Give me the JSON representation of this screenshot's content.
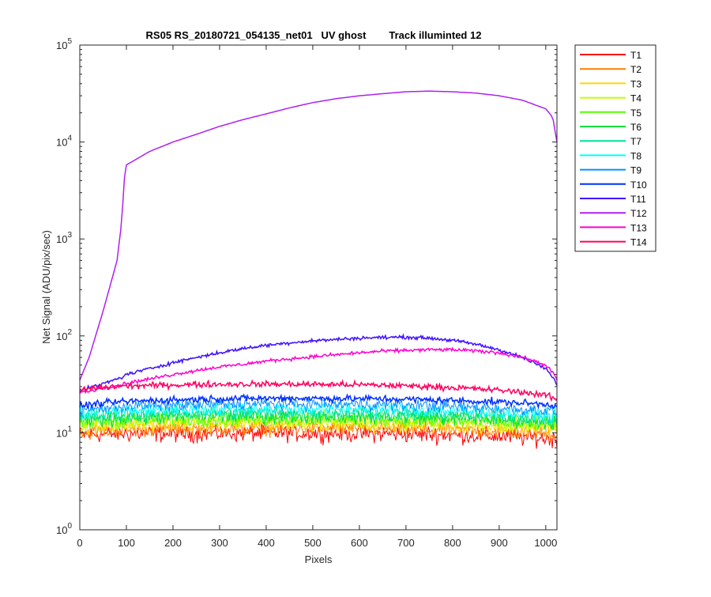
{
  "chart_data": {
    "type": "line",
    "title": "RS05 RS_20180721_054135_net01   UV ghost        Track illuminted 12",
    "xlabel": "Pixels",
    "ylabel": "Net Signal (ADU/pix/sec)",
    "xlim": [
      0,
      1024
    ],
    "ylim": [
      1,
      100000
    ],
    "yscale": "log",
    "grid": false,
    "legend_position": "outside-top-right",
    "x_ticks": [
      "0",
      "100",
      "200",
      "300",
      "400",
      "500",
      "600",
      "700",
      "800",
      "900",
      "1000"
    ],
    "y_ticks": [
      {
        "base": "10",
        "exp": "0"
      },
      {
        "base": "10",
        "exp": "1"
      },
      {
        "base": "10",
        "exp": "2"
      },
      {
        "base": "10",
        "exp": "3"
      },
      {
        "base": "10",
        "exp": "4"
      },
      {
        "base": "10",
        "exp": "5"
      }
    ],
    "x": [
      0,
      20,
      50,
      80,
      90,
      95,
      100,
      150,
      200,
      250,
      300,
      350,
      400,
      450,
      500,
      550,
      600,
      650,
      700,
      750,
      800,
      850,
      900,
      950,
      1000,
      1015,
      1024
    ],
    "series": [
      {
        "name": "T1",
        "color": "#ff0000",
        "noise": 0.1,
        "values": [
          9.5,
          9.6,
          9.7,
          9.8,
          9.8,
          9.8,
          9.8,
          9.8,
          9.8,
          9.8,
          9.9,
          9.9,
          9.9,
          9.9,
          9.9,
          9.9,
          9.8,
          9.8,
          9.7,
          9.6,
          9.5,
          9.4,
          9.2,
          9.0,
          8.8,
          8.6,
          8.5
        ]
      },
      {
        "name": "T2",
        "color": "#ff7f00",
        "noise": 0.09,
        "values": [
          10.0,
          10.2,
          10.5,
          10.7,
          10.7,
          10.8,
          10.8,
          10.9,
          11.0,
          11.0,
          11.1,
          11.1,
          11.1,
          11.1,
          11.0,
          11.0,
          11.0,
          10.9,
          10.8,
          10.7,
          10.6,
          10.5,
          10.3,
          10.1,
          9.9,
          9.7,
          9.5
        ]
      },
      {
        "name": "T3",
        "color": "#ffd700",
        "noise": 0.09,
        "values": [
          11.0,
          11.3,
          11.6,
          11.8,
          11.9,
          11.9,
          12.0,
          12.1,
          12.2,
          12.3,
          12.3,
          12.3,
          12.3,
          12.3,
          12.3,
          12.2,
          12.2,
          12.1,
          12.0,
          12.5,
          12.0,
          11.7,
          11.5,
          11.2,
          11.0,
          10.7,
          10.5
        ]
      },
      {
        "name": "T4",
        "color": "#c0ff00",
        "noise": 0.09,
        "values": [
          11.8,
          12.1,
          12.5,
          12.7,
          12.8,
          12.8,
          12.9,
          13.0,
          13.1,
          13.2,
          13.2,
          13.3,
          13.3,
          13.3,
          13.3,
          13.2,
          13.2,
          13.1,
          13.0,
          12.9,
          12.7,
          12.5,
          12.3,
          12.0,
          11.7,
          11.5,
          11.3
        ]
      },
      {
        "name": "T5",
        "color": "#55ff00",
        "noise": 0.09,
        "values": [
          12.5,
          12.8,
          13.2,
          13.5,
          13.6,
          13.6,
          13.7,
          13.8,
          13.9,
          14.0,
          14.0,
          14.1,
          14.1,
          14.1,
          14.0,
          14.0,
          14.0,
          13.9,
          13.8,
          13.6,
          13.4,
          13.2,
          13.0,
          12.7,
          12.4,
          12.2,
          12.0
        ]
      },
      {
        "name": "T6",
        "color": "#00e040",
        "noise": 0.09,
        "values": [
          13.3,
          13.6,
          14.0,
          14.3,
          14.4,
          14.4,
          14.5,
          14.6,
          14.8,
          14.9,
          15.0,
          15.0,
          15.0,
          15.0,
          15.0,
          14.9,
          14.9,
          14.8,
          14.7,
          14.5,
          14.3,
          14.1,
          13.8,
          13.5,
          13.2,
          13.0,
          12.8
        ]
      },
      {
        "name": "T7",
        "color": "#00e0a0",
        "noise": 0.08,
        "values": [
          14.2,
          14.5,
          15.0,
          15.3,
          15.4,
          15.4,
          15.5,
          15.7,
          15.9,
          16.0,
          16.1,
          16.1,
          16.1,
          16.1,
          16.1,
          16.0,
          16.0,
          15.9,
          15.8,
          15.6,
          15.4,
          15.1,
          14.8,
          14.5,
          14.1,
          13.9,
          13.7
        ]
      },
      {
        "name": "T8",
        "color": "#00ffff",
        "noise": 0.08,
        "values": [
          15.5,
          15.9,
          16.4,
          16.8,
          16.9,
          16.9,
          17.0,
          17.2,
          17.4,
          17.6,
          17.7,
          17.8,
          17.8,
          17.8,
          17.7,
          17.7,
          17.6,
          17.5,
          17.3,
          17.1,
          16.8,
          16.5,
          16.2,
          15.8,
          15.4,
          15.1,
          14.9
        ]
      },
      {
        "name": "T9",
        "color": "#0090ff",
        "noise": 0.07,
        "values": [
          17.0,
          17.4,
          18.0,
          18.4,
          18.6,
          18.6,
          18.7,
          19.0,
          19.3,
          19.5,
          19.7,
          19.8,
          19.8,
          19.8,
          19.8,
          19.7,
          19.6,
          19.5,
          19.3,
          19.0,
          18.7,
          18.3,
          17.9,
          17.4,
          16.9,
          16.6,
          16.3
        ]
      },
      {
        "name": "T10",
        "color": "#0030ff",
        "noise": 0.04,
        "values": [
          19.0,
          19.5,
          20.2,
          20.7,
          20.9,
          21.0,
          21.1,
          21.5,
          21.9,
          22.2,
          22.5,
          22.6,
          22.7,
          22.7,
          22.7,
          22.6,
          22.5,
          22.4,
          22.2,
          21.9,
          21.6,
          21.2,
          20.8,
          20.3,
          19.7,
          19.3,
          19.0
        ]
      },
      {
        "name": "T11",
        "color": "#4010ff",
        "noise": 0.02,
        "values": [
          27.0,
          29.0,
          32.0,
          36.0,
          37.5,
          38.5,
          40.0,
          46.0,
          53.0,
          60.0,
          67.0,
          74.0,
          80.0,
          85.0,
          89.0,
          92.0,
          95.0,
          96.5,
          97.0,
          95.0,
          90.0,
          82.0,
          72.0,
          60.0,
          46.0,
          37.0,
          32.0
        ]
      },
      {
        "name": "T12",
        "color": "#b020f0",
        "noise": 0.0,
        "values": [
          35.0,
          60.0,
          180.0,
          600.0,
          1500.0,
          4000.0,
          5800.0,
          8000.0,
          10000.0,
          12000.0,
          14500.0,
          17000.0,
          19500.0,
          22500.0,
          25500.0,
          28000.0,
          30000.0,
          31500.0,
          33000.0,
          33500.0,
          33000.0,
          32000.0,
          30000.0,
          27000.0,
          22000.0,
          18000.0,
          10000.0
        ]
      },
      {
        "name": "T13",
        "color": "#ff00d0",
        "noise": 0.02,
        "values": [
          26.0,
          27.0,
          29.0,
          31.0,
          31.5,
          32.0,
          32.5,
          36.0,
          40.0,
          44.0,
          48.0,
          51.0,
          55.0,
          58.0,
          61.0,
          64.0,
          67.0,
          69.5,
          71.0,
          72.0,
          72.0,
          70.0,
          67.0,
          60.0,
          50.0,
          42.0,
          35.0
        ]
      },
      {
        "name": "T14",
        "color": "#ff0060",
        "noise": 0.035,
        "values": [
          27.5,
          28.5,
          29.5,
          30.0,
          30.2,
          30.3,
          30.4,
          30.8,
          31.2,
          31.5,
          31.7,
          31.8,
          31.8,
          31.8,
          31.7,
          31.5,
          31.3,
          31.0,
          30.6,
          30.0,
          29.3,
          28.5,
          27.5,
          26.3,
          24.5,
          23.0,
          22.0
        ]
      }
    ]
  }
}
